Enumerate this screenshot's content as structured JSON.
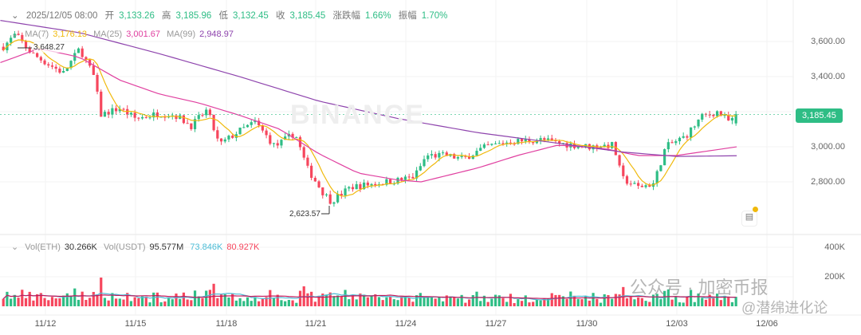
{
  "header": {
    "chevron": "chevron-down-icon",
    "datetime": "2025/12/05 08:00",
    "open_label": "开",
    "open": "3,133.26",
    "high_label": "高",
    "high": "3,185.96",
    "low_label": "低",
    "low": "3,132.45",
    "close_label": "收",
    "close": "3,185.45",
    "change_label": "涨跌幅",
    "change": "1.66%",
    "amp_label": "振幅",
    "amp": "1.70%"
  },
  "ma": {
    "ma7_label": "MA(7)",
    "ma7": "3,176.13",
    "ma25_label": "MA(25)",
    "ma25": "3,001.67",
    "ma99_label": "MA(99)",
    "ma99": "2,948.97"
  },
  "volume": {
    "eth_label": "Vol(ETH)",
    "eth": "30.266K",
    "usdt_label": "Vol(USDT)",
    "usdt": "95.577M",
    "ma1": "73.846K",
    "ma2": "80.927K"
  },
  "price_axis": [
    "3,600.00",
    "3,400.00",
    "3,000.00",
    "2,800.00"
  ],
  "volume_axis": [
    "400K",
    "200K"
  ],
  "current_price": "3,185.45",
  "high_marker": "3,648.27",
  "low_marker": "2,623.57",
  "dates": [
    "11/12",
    "11/15",
    "11/18",
    "11/21",
    "11/24",
    "11/27",
    "11/30",
    "12/03",
    "12/06"
  ],
  "watermark": "BINANCE",
  "overlay_text": {
    "a": "公众号 · 加密币报",
    "b": "@潜绵进化论"
  },
  "colors": {
    "up": "#2ebd85",
    "down": "#f6465d",
    "ma7": "#f0b90b",
    "ma25": "#e040a0",
    "ma99": "#8e44ad"
  },
  "chart_data": {
    "type": "candlestick",
    "price_path_days_since_1112": [
      [
        -1.4,
        3570
      ],
      [
        -1.0,
        3640
      ],
      [
        -0.45,
        3530
      ],
      [
        0.1,
        3470
      ],
      [
        0.6,
        3420
      ],
      [
        1.14,
        3560
      ],
      [
        1.67,
        3380
      ],
      [
        1.8,
        3180
      ],
      [
        2.47,
        3220
      ],
      [
        3.0,
        3160
      ],
      [
        3.8,
        3190
      ],
      [
        4.32,
        3180
      ],
      [
        4.85,
        3120
      ],
      [
        5.38,
        3210
      ],
      [
        5.78,
        3010
      ],
      [
        6.45,
        3090
      ],
      [
        6.98,
        3140
      ],
      [
        7.64,
        3000
      ],
      [
        8.3,
        3080
      ],
      [
        8.7,
        2880
      ],
      [
        9.23,
        2740
      ],
      [
        9.5,
        2690
      ],
      [
        10.16,
        2770
      ],
      [
        10.95,
        2790
      ],
      [
        11.75,
        2810
      ],
      [
        12.28,
        2830
      ],
      [
        12.68,
        2950
      ],
      [
        13.34,
        2950
      ],
      [
        13.87,
        2930
      ],
      [
        14.67,
        3000
      ],
      [
        15.46,
        3030
      ],
      [
        16.53,
        3040
      ],
      [
        17.06,
        3020
      ],
      [
        18.1,
        3000
      ],
      [
        18.9,
        3010
      ],
      [
        19.18,
        2820
      ],
      [
        19.7,
        2770
      ],
      [
        20.24,
        2790
      ],
      [
        20.64,
        3000
      ],
      [
        21.3,
        3060
      ],
      [
        21.83,
        3170
      ],
      [
        22.36,
        3200
      ],
      [
        22.76,
        3140
      ],
      [
        23.08,
        3185.45
      ]
    ],
    "ma25_path": [
      [
        -1.5,
        3480
      ],
      [
        -0.2,
        3560
      ],
      [
        1.14,
        3510
      ],
      [
        2.47,
        3380
      ],
      [
        3.8,
        3300
      ],
      [
        5.1,
        3250
      ],
      [
        6.45,
        3180
      ],
      [
        7.8,
        3100
      ],
      [
        9.1,
        2960
      ],
      [
        10.4,
        2850
      ],
      [
        11.75,
        2810
      ],
      [
        12.5,
        2800
      ],
      [
        14.4,
        2880
      ],
      [
        15.7,
        2950
      ],
      [
        17.06,
        3010
      ],
      [
        18.6,
        2990
      ],
      [
        19.7,
        2950
      ],
      [
        21.0,
        2950
      ],
      [
        23.08,
        3001.67
      ]
    ],
    "ma99_path": [
      [
        -1.5,
        3720
      ],
      [
        1.14,
        3650
      ],
      [
        3.8,
        3530
      ],
      [
        6.45,
        3400
      ],
      [
        9.1,
        3260
      ],
      [
        11.75,
        3160
      ],
      [
        14.4,
        3080
      ],
      [
        17.06,
        3020
      ],
      [
        19.2,
        2970
      ],
      [
        21.0,
        2945
      ],
      [
        23.08,
        2948.97
      ]
    ],
    "ylim": [
      2560,
      3740
    ],
    "vol_ylim": [
      0,
      430000
    ],
    "interval_hours": 3
  }
}
